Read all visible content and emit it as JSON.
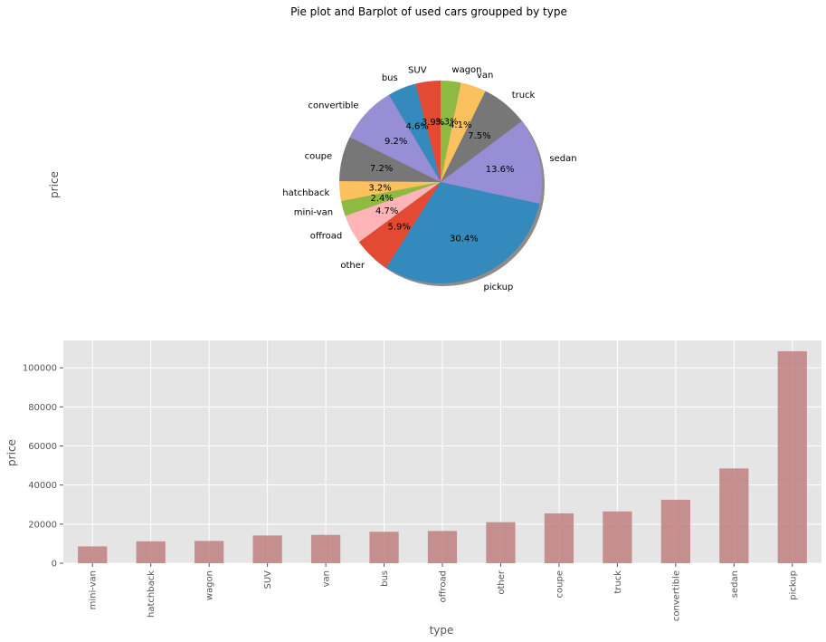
{
  "figure": {
    "title": "Pie plot and Barplot of used cars groupped by type"
  },
  "chart_data": [
    {
      "type": "pie",
      "ylabel": "price",
      "shadow": true,
      "start_angle_deg": 90,
      "direction": "counterclockwise",
      "slices": [
        {
          "label": "SUV",
          "pct": "3.9%",
          "value": 14200,
          "color": "#E24A33"
        },
        {
          "label": "bus",
          "pct": "4.6%",
          "value": 16100,
          "color": "#348ABD"
        },
        {
          "label": "convertible",
          "pct": "9.2%",
          "value": 32500,
          "color": "#988ED5"
        },
        {
          "label": "coupe",
          "pct": "7.2%",
          "value": 25500,
          "color": "#777777"
        },
        {
          "label": "hatchback",
          "pct": "3.2%",
          "value": 11200,
          "color": "#FBC15E"
        },
        {
          "label": "mini-van",
          "pct": "2.4%",
          "value": 8600,
          "color": "#8EBA42"
        },
        {
          "label": "offroad",
          "pct": "4.7%",
          "value": 16500,
          "color": "#FFB5B8"
        },
        {
          "label": "other",
          "pct": "5.9%",
          "value": 21000,
          "color": "#E24A33"
        },
        {
          "label": "pickup",
          "pct": "30.4%",
          "value": 108500,
          "color": "#348ABD"
        },
        {
          "label": "sedan",
          "pct": "13.6%",
          "value": 48500,
          "color": "#988ED5"
        },
        {
          "label": "truck",
          "pct": "7.5%",
          "value": 26500,
          "color": "#777777"
        },
        {
          "label": "van",
          "pct": "4.1%",
          "value": 14500,
          "color": "#FBC15E"
        },
        {
          "label": "wagon",
          "pct": "3.3%",
          "value": 11400,
          "color": "#8EBA42"
        }
      ]
    },
    {
      "type": "bar",
      "xlabel": "type",
      "ylabel": "price",
      "grid": true,
      "bar_color": "#C08080",
      "ylim": [
        0,
        114000
      ],
      "yticks": [
        0,
        20000,
        40000,
        60000,
        80000,
        100000
      ],
      "ytick_labels": [
        "0",
        "20000",
        "40000",
        "60000",
        "80000",
        "100000"
      ],
      "categories": [
        "mini-van",
        "hatchback",
        "wagon",
        "SUV",
        "van",
        "bus",
        "offroad",
        "other",
        "coupe",
        "truck",
        "convertible",
        "sedan",
        "pickup"
      ],
      "values": [
        8600,
        11200,
        11400,
        14200,
        14500,
        16100,
        16500,
        21000,
        25500,
        26500,
        32500,
        48500,
        108500
      ]
    }
  ]
}
